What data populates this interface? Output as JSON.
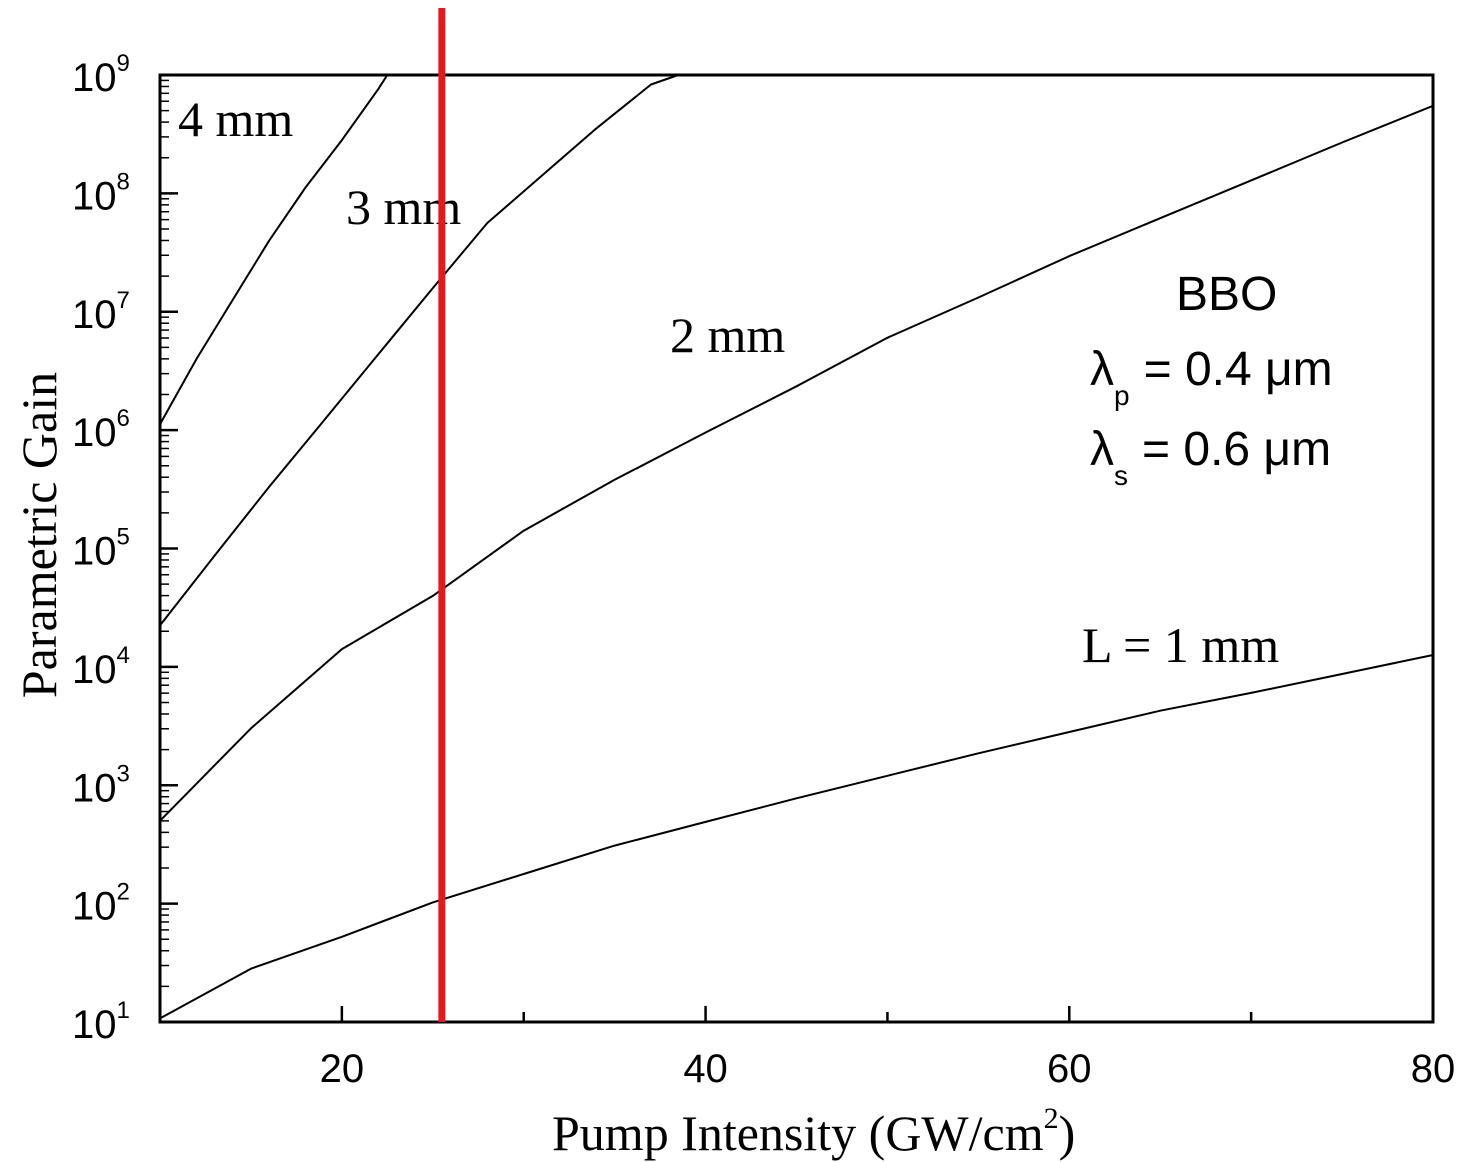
{
  "chart_data": {
    "type": "line",
    "xlabel": "Pump Intensity (GW/cm",
    "xlabel_sup": "2",
    "xlabel_close": ")",
    "ylabel": "Parametric Gain",
    "xlim": [
      10,
      80
    ],
    "ylim_log10": [
      1,
      9
    ],
    "y_scale": "log",
    "x_ticks": [
      20,
      40,
      60,
      80
    ],
    "x_tick_labels": [
      "20",
      "40",
      "60",
      "80"
    ],
    "y_ticks": [
      1,
      2,
      3,
      4,
      5,
      6,
      7,
      8,
      9
    ],
    "y_tick_base": "10",
    "y_tick_exponents": [
      "1",
      "2",
      "3",
      "4",
      "5",
      "6",
      "7",
      "8",
      "9"
    ],
    "series": [
      {
        "name": "L = 1 mm",
        "x": [
          10,
          15,
          20,
          25,
          30,
          35,
          40,
          45,
          50,
          55,
          60,
          65,
          70,
          75,
          80
        ],
        "log10_y": [
          1.03,
          1.45,
          1.72,
          2.01,
          2.25,
          2.49,
          2.69,
          2.89,
          3.08,
          3.27,
          3.45,
          3.63,
          3.78,
          3.94,
          4.1
        ]
      },
      {
        "name": "2 mm",
        "x": [
          10,
          15,
          20,
          25,
          30,
          35,
          40,
          45,
          50,
          55,
          60,
          65,
          70,
          75,
          80
        ],
        "log10_y": [
          2.7,
          3.48,
          4.15,
          4.6,
          5.15,
          5.58,
          5.98,
          6.37,
          6.78,
          7.12,
          7.47,
          7.79,
          8.11,
          8.43,
          8.74
        ]
      },
      {
        "name": "3 mm",
        "x": [
          10,
          13,
          16,
          19,
          22,
          25,
          28,
          31,
          34,
          37,
          38.5
        ],
        "log10_y": [
          4.35,
          4.94,
          5.52,
          6.08,
          6.64,
          7.2,
          7.75,
          8.15,
          8.55,
          8.92,
          9.0
        ]
      },
      {
        "name": "4 mm",
        "x": [
          10,
          12,
          14,
          16,
          18,
          20,
          22,
          22.5
        ],
        "log10_y": [
          6.05,
          6.6,
          7.1,
          7.6,
          8.05,
          8.45,
          8.88,
          9.0
        ]
      }
    ],
    "series_labels": [
      "4 mm",
      "3 mm",
      "2 mm",
      "L = 1 mm"
    ],
    "annotation": {
      "material": "BBO",
      "lambda_p_symbol": "λ",
      "lambda_p_sub": "p",
      "lambda_p_value": "= 0.4 μm",
      "lambda_s_symbol": "λ",
      "lambda_s_sub": "s",
      "lambda_s_value": "= 0.6 μm"
    },
    "marker_line": {
      "x": 25.5,
      "color": "#e8171c"
    },
    "grid": false,
    "legend": "none",
    "colors": {
      "curve": "#000000",
      "axis": "#000000",
      "marker": "#e8171c"
    }
  }
}
